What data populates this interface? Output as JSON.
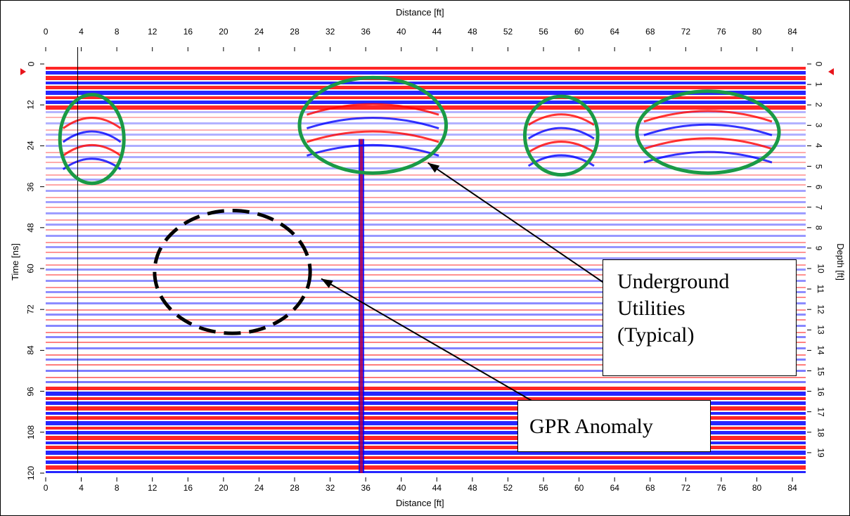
{
  "chart_data": {
    "type": "heatmap",
    "title": "",
    "colormap": [
      "#0000ff",
      "#ffffff",
      "#ff0000"
    ],
    "x_axis": {
      "label": "Distance [ft]",
      "ticks": [
        "0",
        "4",
        "8",
        "12",
        "16",
        "20",
        "24",
        "28",
        "32",
        "36",
        "40",
        "44",
        "48",
        "52",
        "56",
        "60",
        "64",
        "68",
        "72",
        "76",
        "80",
        "84"
      ],
      "range": [
        0,
        85.5
      ]
    },
    "y_axis_left": {
      "label": "Time [ns]",
      "ticks": [
        "0",
        "12",
        "24",
        "36",
        "48",
        "60",
        "72",
        "84",
        "96",
        "108",
        "120"
      ],
      "range": [
        0,
        120
      ]
    },
    "y_axis_right": {
      "label": "Depth [ft]",
      "ticks": [
        "0",
        "1",
        "2",
        "3",
        "4",
        "5",
        "6",
        "7",
        "8",
        "9",
        "10",
        "11",
        "12",
        "13",
        "14",
        "15",
        "16",
        "17",
        "18",
        "19"
      ],
      "range": [
        0,
        20
      ]
    },
    "marker_line_x": 3.6,
    "utility_ellipses": [
      {
        "center_ft": 5.2,
        "center_ns": 22,
        "width_ft": 7.2,
        "height_ns": 26
      },
      {
        "center_ft": 36.8,
        "center_ns": 18,
        "width_ft": 16.5,
        "height_ns": 28
      },
      {
        "center_ft": 58.0,
        "center_ns": 21,
        "width_ft": 8.2,
        "height_ns": 23
      },
      {
        "center_ft": 74.5,
        "center_ns": 20,
        "width_ft": 16.0,
        "height_ns": 24
      }
    ],
    "anomaly_ellipse": {
      "center_ft": 21.0,
      "center_ns": 61,
      "width_ft": 17.5,
      "height_ns": 36
    },
    "arrows": [
      {
        "from_ft": 65.5,
        "from_ns": 69,
        "to_ft": 43.0,
        "to_ns": 29
      },
      {
        "from_ft": 55.5,
        "from_ns": 100,
        "to_ft": 31.0,
        "to_ns": 63
      }
    ]
  },
  "annotations": {
    "utilities_callout": [
      "Underground",
      "Utilities",
      "(Typical)"
    ],
    "anomaly_callout": "GPR Anomaly"
  },
  "colors": {
    "utility_ellipse": "#1a9a46",
    "anomaly_ellipse": "#000000",
    "marker_down": "#e8141b"
  }
}
